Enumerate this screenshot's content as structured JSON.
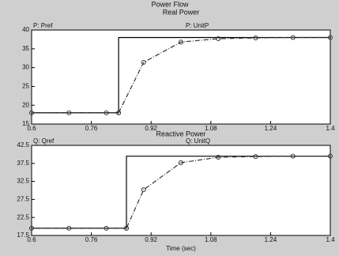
{
  "chart_data": [
    {
      "type": "line",
      "title": "Power Flow",
      "subtitle": "Real Power",
      "x": [
        0.6,
        0.7,
        0.8,
        0.833,
        0.833,
        0.9,
        1.0,
        1.1,
        1.2,
        1.3,
        1.4
      ],
      "series": [
        {
          "name": "P: Pref",
          "color": "#000000",
          "dash": false,
          "marker": false,
          "values": [
            18,
            18,
            18,
            18,
            38,
            38,
            38,
            38,
            38,
            38,
            38
          ]
        },
        {
          "name": "P: UnitP",
          "color": "#333333",
          "dash": true,
          "marker": true,
          "values": [
            18,
            18,
            18,
            18,
            18,
            31.4,
            36.8,
            37.7,
            37.9,
            38,
            38
          ]
        }
      ],
      "xlim": [
        0.6,
        1.4
      ],
      "xticks": [
        0.6,
        0.76,
        0.92,
        1.08,
        1.24,
        1.4
      ],
      "ylim": [
        15,
        40
      ],
      "yticks": [
        15,
        20,
        25,
        30,
        35,
        40
      ]
    },
    {
      "type": "line",
      "subtitle": "Reactive Power",
      "xlabel": "Time (sec)",
      "x": [
        0.6,
        0.7,
        0.8,
        0.854,
        0.854,
        0.9,
        1.0,
        1.1,
        1.2,
        1.3,
        1.4
      ],
      "series": [
        {
          "name": "Q: Qref",
          "color": "#000000",
          "dash": false,
          "marker": false,
          "values": [
            19.5,
            19.5,
            19.5,
            19.5,
            39.5,
            39.5,
            39.5,
            39.5,
            39.5,
            39.5,
            39.5
          ]
        },
        {
          "name": "Q: UnitQ",
          "color": "#333333",
          "dash": true,
          "marker": true,
          "values": [
            19.5,
            19.5,
            19.5,
            19.5,
            19.5,
            30.2,
            37.7,
            39.2,
            39.4,
            39.5,
            39.5
          ]
        }
      ],
      "xlim": [
        0.6,
        1.4
      ],
      "xticks": [
        0.6,
        0.76,
        0.92,
        1.08,
        1.24,
        1.4
      ],
      "ylim": [
        17.5,
        42.5
      ],
      "yticks": [
        17.5,
        22.5,
        27.5,
        32.5,
        37.5,
        42.5
      ]
    }
  ]
}
